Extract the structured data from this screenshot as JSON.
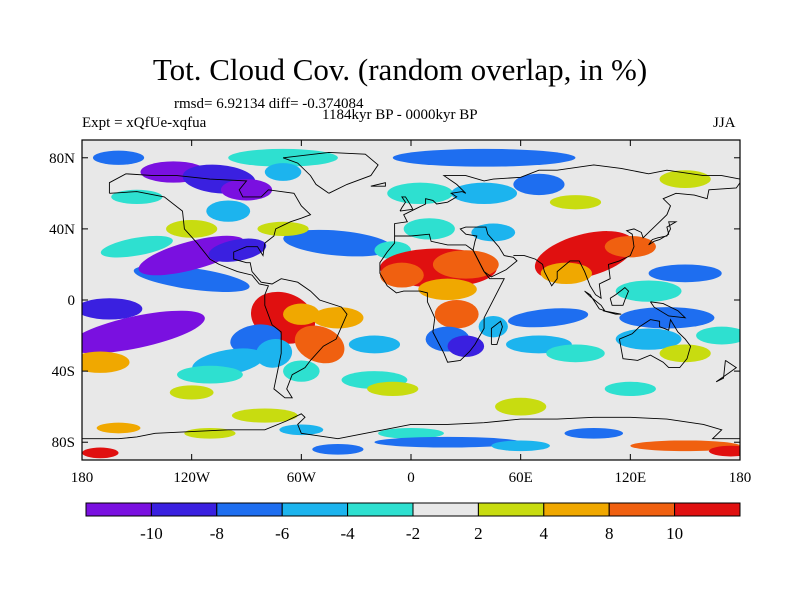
{
  "title": "Tot. Cloud Cov. (random overlap, in %)",
  "stats": "rmsd= 6.92134 diff= -0.374084",
  "period": "1184kyr BP - 0000kyr BP",
  "experiment": "Expt = xQfUe-xqfua",
  "season": "JJA",
  "map": {
    "lon_range": [
      -180,
      180
    ],
    "lat_range": [
      -90,
      90
    ],
    "lon_ticks": [
      {
        "lon": -180,
        "label": "180"
      },
      {
        "lon": -120,
        "label": "120W"
      },
      {
        "lon": -60,
        "label": "60W"
      },
      {
        "lon": 0,
        "label": "0"
      },
      {
        "lon": 60,
        "label": "60E"
      },
      {
        "lon": 120,
        "label": "120E"
      },
      {
        "lon": 180,
        "label": "180"
      }
    ],
    "lat_ticks": [
      {
        "lat": 80,
        "label": "80N"
      },
      {
        "lat": 40,
        "label": "40N"
      },
      {
        "lat": 0,
        "label": "0"
      },
      {
        "lat": -40,
        "label": "40S"
      },
      {
        "lat": -80,
        "label": "80S"
      }
    ]
  },
  "colorbar": {
    "colors": [
      "#7a10e0",
      "#3a20e0",
      "#1e6ef0",
      "#1cb4ee",
      "#2ee0d0",
      "#e8e8e8",
      "#c8dc10",
      "#f0a800",
      "#f06010",
      "#e01010"
    ],
    "labels": [
      "-10",
      "-8",
      "-6",
      "-4",
      "-2",
      "2",
      "4",
      "8",
      "10"
    ]
  }
}
